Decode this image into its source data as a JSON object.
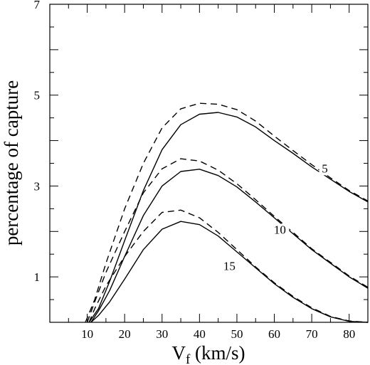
{
  "chart_data": {
    "type": "line",
    "title": "",
    "xlabel": "V",
    "xlabel_subscript": "f",
    "xlabel_suffix": " (km/s)",
    "ylabel": "percentage of capture",
    "xlim": [
      0,
      85
    ],
    "ylim": [
      0,
      7
    ],
    "x_ticks_labeled": [
      10,
      20,
      30,
      40,
      50,
      60,
      70,
      80
    ],
    "x_tick_labels": [
      "10",
      "20",
      "30",
      "40",
      "50",
      "60",
      "70",
      "80"
    ],
    "y_ticks_labeled": [
      1,
      3,
      5,
      7
    ],
    "y_tick_labels": [
      "1",
      "3",
      "5",
      "7"
    ],
    "grid": false,
    "line_color": "#000000",
    "series": [
      {
        "label": "5",
        "style": "solid",
        "x": [
          10.5,
          13,
          16,
          20,
          25,
          30,
          35,
          40,
          45,
          50,
          55,
          60,
          65,
          70,
          75,
          80,
          85
        ],
        "y": [
          0.0,
          0.3,
          0.9,
          1.8,
          2.9,
          3.8,
          4.35,
          4.58,
          4.62,
          4.52,
          4.3,
          4.0,
          3.72,
          3.42,
          3.15,
          2.88,
          2.65
        ]
      },
      {
        "label": "5",
        "style": "dashed",
        "x": [
          9.5,
          12,
          15,
          20,
          25,
          30,
          35,
          40,
          45,
          50,
          55,
          60,
          65,
          70,
          75,
          80,
          85
        ],
        "y": [
          0.0,
          0.5,
          1.3,
          2.5,
          3.5,
          4.28,
          4.7,
          4.82,
          4.8,
          4.68,
          4.43,
          4.1,
          3.78,
          3.47,
          3.18,
          2.9,
          2.67
        ]
      },
      {
        "label": "10",
        "style": "solid",
        "x": [
          11,
          13,
          16,
          20,
          25,
          30,
          35,
          40,
          45,
          50,
          55,
          60,
          65,
          70,
          75,
          80,
          85
        ],
        "y": [
          0.0,
          0.25,
          0.7,
          1.45,
          2.35,
          3.0,
          3.32,
          3.37,
          3.23,
          2.98,
          2.65,
          2.3,
          1.95,
          1.6,
          1.3,
          1.0,
          0.75
        ]
      },
      {
        "label": "10",
        "style": "dashed",
        "x": [
          10,
          12,
          15,
          20,
          25,
          30,
          35,
          40,
          45,
          50,
          55,
          60,
          65,
          70,
          75,
          80,
          85
        ],
        "y": [
          0.0,
          0.45,
          1.1,
          2.0,
          2.85,
          3.38,
          3.6,
          3.55,
          3.35,
          3.05,
          2.7,
          2.33,
          1.98,
          1.62,
          1.32,
          1.02,
          0.77
        ]
      },
      {
        "label": "15",
        "style": "solid",
        "x": [
          11,
          13,
          16,
          20,
          25,
          30,
          35,
          40,
          45,
          50,
          55,
          60,
          65,
          70,
          75,
          80,
          85
        ],
        "y": [
          0.0,
          0.15,
          0.45,
          0.95,
          1.6,
          2.05,
          2.22,
          2.15,
          1.9,
          1.55,
          1.2,
          0.85,
          0.55,
          0.3,
          0.12,
          0.02,
          0.0
        ]
      },
      {
        "label": "15",
        "style": "dashed",
        "x": [
          10.5,
          12,
          15,
          20,
          25,
          30,
          35,
          40,
          45,
          50,
          55,
          60,
          65,
          70,
          75,
          80,
          85
        ],
        "y": [
          0.0,
          0.3,
          0.8,
          1.45,
          2.0,
          2.42,
          2.47,
          2.3,
          1.98,
          1.6,
          1.22,
          0.87,
          0.57,
          0.32,
          0.13,
          0.03,
          0.0
        ]
      }
    ],
    "curve_labels": [
      {
        "text": "5",
        "x": 73.5,
        "y": 3.3
      },
      {
        "text": "10",
        "x": 61.5,
        "y": 1.95
      },
      {
        "text": "15",
        "x": 48,
        "y": 1.15
      }
    ]
  }
}
